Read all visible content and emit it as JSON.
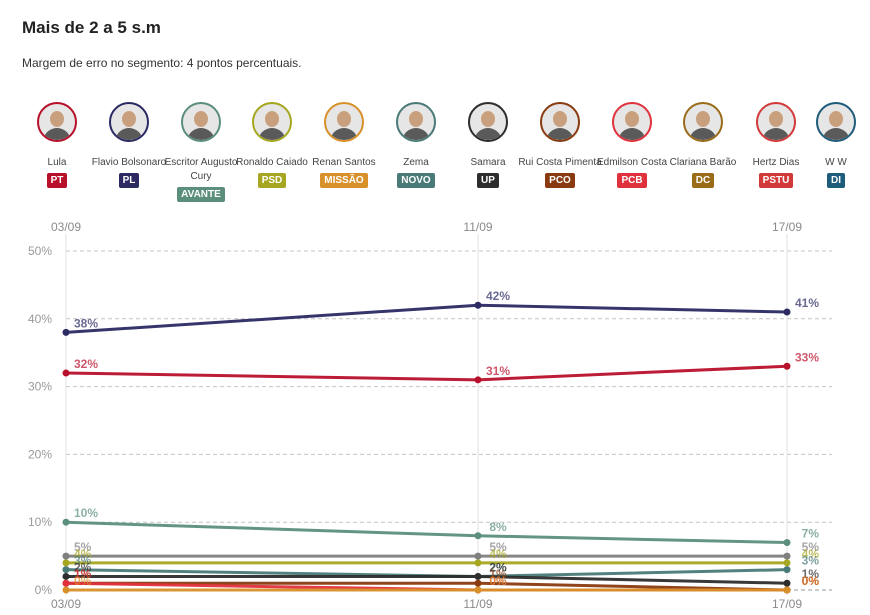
{
  "title": "Mais de 2 a 5 s.m",
  "subtitle": "Margem de erro no segmento: 4 pontos percentuais.",
  "candidates": [
    {
      "name": "Lula",
      "party": "PT",
      "color": "#b8102a"
    },
    {
      "name": "Flavio Bolsonaro",
      "party": "PL",
      "color": "#2b2a63"
    },
    {
      "name": "Escritor Augusto Cury",
      "party": "AVANTE",
      "color": "#5b8f7b"
    },
    {
      "name": "Ronaldo Caiado",
      "party": "PSD",
      "color": "#a6a620"
    },
    {
      "name": "Renan Santos",
      "party": "MISSÃO",
      "color": "#d8902a"
    },
    {
      "name": "Zema",
      "party": "NOVO",
      "color": "#4a7a78"
    },
    {
      "name": "Samara",
      "party": "UP",
      "color": "#2d2d2d"
    },
    {
      "name": "Rui Costa Pimenta",
      "party": "PCO",
      "color": "#8a3a10"
    },
    {
      "name": "Edmilson Costa",
      "party": "PCB",
      "color": "#e0323c"
    },
    {
      "name": "Clariana Barão",
      "party": "DC",
      "color": "#9a6c1a"
    },
    {
      "name": "Hertz Dias",
      "party": "PSTU",
      "color": "#d23a3a"
    },
    {
      "name": "W W",
      "party": "DI",
      "color": "#1d5c7a"
    }
  ],
  "chart_data": {
    "type": "line",
    "x": [
      "03/09",
      "11/09",
      "17/09"
    ],
    "ylim": [
      0,
      50
    ],
    "yticks": [
      "0%",
      "10%",
      "20%",
      "30%",
      "40%",
      "50%"
    ],
    "grid": true,
    "series": [
      {
        "name": "Flavio Bolsonaro",
        "color": "#2b2a63",
        "values": [
          38,
          42,
          41
        ]
      },
      {
        "name": "Lula",
        "color": "#b8102a",
        "values": [
          32,
          31,
          33
        ]
      },
      {
        "name": "Escritor Augusto Cury",
        "color": "#5b8f7b",
        "values": [
          10,
          8,
          7
        ]
      },
      {
        "name": "Renan Santos",
        "color": "#7f7f7f",
        "values": [
          5,
          5,
          5
        ]
      },
      {
        "name": "Ronaldo Caiado",
        "color": "#a6a620",
        "values": [
          4,
          4,
          4
        ]
      },
      {
        "name": "Zema",
        "color": "#4a7a78",
        "values": [
          3,
          2,
          3
        ]
      },
      {
        "name": "Samara",
        "color": "#2d2d2d",
        "values": [
          2,
          2,
          1
        ]
      },
      {
        "name": "Rui Costa Pimenta",
        "color": "#8a3a10",
        "values": [
          1,
          1,
          0
        ]
      },
      {
        "name": "Edmilson Costa",
        "color": "#e0323c",
        "values": [
          1,
          0,
          0
        ]
      },
      {
        "name": "Clariana Barão",
        "color": "#d8902a",
        "values": [
          0,
          0,
          0
        ]
      }
    ]
  }
}
